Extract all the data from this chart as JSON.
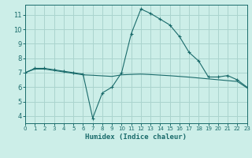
{
  "title": "",
  "xlabel": "Humidex (Indice chaleur)",
  "ylabel": "",
  "bg_color": "#cceee8",
  "grid_color": "#aad4ce",
  "line_color": "#1a6b6b",
  "line1_x": [
    0,
    1,
    2,
    3,
    4,
    5,
    6,
    7,
    8,
    9,
    10,
    11,
    12,
    13,
    14,
    15,
    16,
    17,
    18,
    19,
    20,
    21,
    22,
    23
  ],
  "line1_y": [
    7.0,
    7.3,
    7.3,
    7.2,
    7.1,
    7.0,
    6.9,
    3.85,
    5.6,
    6.0,
    7.0,
    9.7,
    11.4,
    11.1,
    10.7,
    10.3,
    9.5,
    8.4,
    7.8,
    6.7,
    6.7,
    6.8,
    6.5,
    6.0
  ],
  "line2_x": [
    0,
    1,
    2,
    3,
    4,
    5,
    6,
    7,
    8,
    9,
    10,
    11,
    12,
    13,
    14,
    15,
    16,
    17,
    18,
    19,
    20,
    21,
    22,
    23
  ],
  "line2_y": [
    7.0,
    7.25,
    7.25,
    7.15,
    7.05,
    6.95,
    6.85,
    6.82,
    6.78,
    6.74,
    6.85,
    6.88,
    6.9,
    6.87,
    6.83,
    6.79,
    6.74,
    6.69,
    6.63,
    6.57,
    6.51,
    6.45,
    6.39,
    5.95
  ],
  "xlim": [
    0,
    23
  ],
  "ylim": [
    3.5,
    11.7
  ],
  "yticks": [
    4,
    5,
    6,
    7,
    8,
    9,
    10,
    11
  ],
  "xticks": [
    0,
    1,
    2,
    3,
    4,
    5,
    6,
    7,
    8,
    9,
    10,
    11,
    12,
    13,
    14,
    15,
    16,
    17,
    18,
    19,
    20,
    21,
    22,
    23
  ]
}
